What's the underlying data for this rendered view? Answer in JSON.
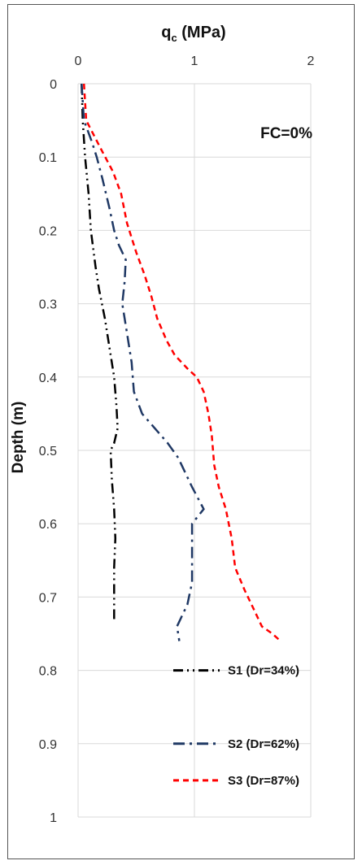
{
  "chart_data": {
    "type": "line",
    "title_main": "q",
    "title_sub": "c",
    "title_unit": " (MPa)",
    "xlabel": "",
    "ylabel": "Depth (m)",
    "xlim": [
      0,
      2
    ],
    "ylim": [
      0,
      1
    ],
    "x_ticks": [
      0,
      1,
      2
    ],
    "y_ticks": [
      0,
      0.1,
      0.2,
      0.3,
      0.4,
      0.5,
      0.6,
      0.7,
      0.8,
      0.9,
      1
    ],
    "x_tick_labels": [
      "0",
      "1",
      "2"
    ],
    "y_tick_labels": [
      "0",
      "0.1",
      "0.2",
      "0.3",
      "0.4",
      "0.5",
      "0.6",
      "0.7",
      "0.8",
      "0.9",
      "1"
    ],
    "y_axis_inverted": true,
    "x_axis_position": "top",
    "grid": "horizontal and vertical",
    "annotation": "FC=0%",
    "legend_position": "bottom-right",
    "series": [
      {
        "name": "S1 (Dr=34%)",
        "color": "#000000",
        "dash": "dash-dot-dot",
        "points": [
          [
            0.03,
            0.0
          ],
          [
            0.04,
            0.05
          ],
          [
            0.06,
            0.1
          ],
          [
            0.09,
            0.15
          ],
          [
            0.11,
            0.2
          ],
          [
            0.15,
            0.25
          ],
          [
            0.18,
            0.28
          ],
          [
            0.23,
            0.32
          ],
          [
            0.27,
            0.36
          ],
          [
            0.31,
            0.4
          ],
          [
            0.33,
            0.44
          ],
          [
            0.34,
            0.47
          ],
          [
            0.31,
            0.49
          ],
          [
            0.28,
            0.5
          ],
          [
            0.29,
            0.54
          ],
          [
            0.31,
            0.58
          ],
          [
            0.32,
            0.62
          ],
          [
            0.31,
            0.66
          ],
          [
            0.31,
            0.7
          ],
          [
            0.31,
            0.73
          ]
        ]
      },
      {
        "name": "S2 (Dr=62%)",
        "color": "#1F3864",
        "dash": "long-dash-dot",
        "points": [
          [
            0.03,
            0.0
          ],
          [
            0.05,
            0.05
          ],
          [
            0.12,
            0.08
          ],
          [
            0.16,
            0.1
          ],
          [
            0.21,
            0.13
          ],
          [
            0.27,
            0.17
          ],
          [
            0.31,
            0.2
          ],
          [
            0.35,
            0.22
          ],
          [
            0.41,
            0.24
          ],
          [
            0.4,
            0.27
          ],
          [
            0.38,
            0.3
          ],
          [
            0.42,
            0.34
          ],
          [
            0.46,
            0.38
          ],
          [
            0.48,
            0.42
          ],
          [
            0.55,
            0.45
          ],
          [
            0.66,
            0.47
          ],
          [
            0.77,
            0.49
          ],
          [
            0.86,
            0.51
          ],
          [
            0.98,
            0.55
          ],
          [
            1.08,
            0.58
          ],
          [
            0.98,
            0.6
          ],
          [
            0.98,
            0.64
          ],
          [
            0.98,
            0.68
          ],
          [
            0.94,
            0.71
          ],
          [
            0.85,
            0.74
          ],
          [
            0.87,
            0.76
          ]
        ]
      },
      {
        "name": "S3 (Dr=87%)",
        "color": "#FF0000",
        "dash": "dashed",
        "points": [
          [
            0.05,
            0.0
          ],
          [
            0.07,
            0.05
          ],
          [
            0.2,
            0.09
          ],
          [
            0.3,
            0.12
          ],
          [
            0.37,
            0.15
          ],
          [
            0.42,
            0.19
          ],
          [
            0.5,
            0.23
          ],
          [
            0.57,
            0.26
          ],
          [
            0.63,
            0.29
          ],
          [
            0.68,
            0.32
          ],
          [
            0.76,
            0.35
          ],
          [
            0.83,
            0.37
          ],
          [
            0.95,
            0.39
          ],
          [
            1.02,
            0.4
          ],
          [
            1.08,
            0.42
          ],
          [
            1.12,
            0.45
          ],
          [
            1.15,
            0.48
          ],
          [
            1.17,
            0.52
          ],
          [
            1.21,
            0.55
          ],
          [
            1.27,
            0.58
          ],
          [
            1.32,
            0.62
          ],
          [
            1.35,
            0.66
          ],
          [
            1.43,
            0.69
          ],
          [
            1.52,
            0.72
          ],
          [
            1.58,
            0.74
          ],
          [
            1.67,
            0.75
          ],
          [
            1.74,
            0.76
          ]
        ]
      }
    ]
  }
}
